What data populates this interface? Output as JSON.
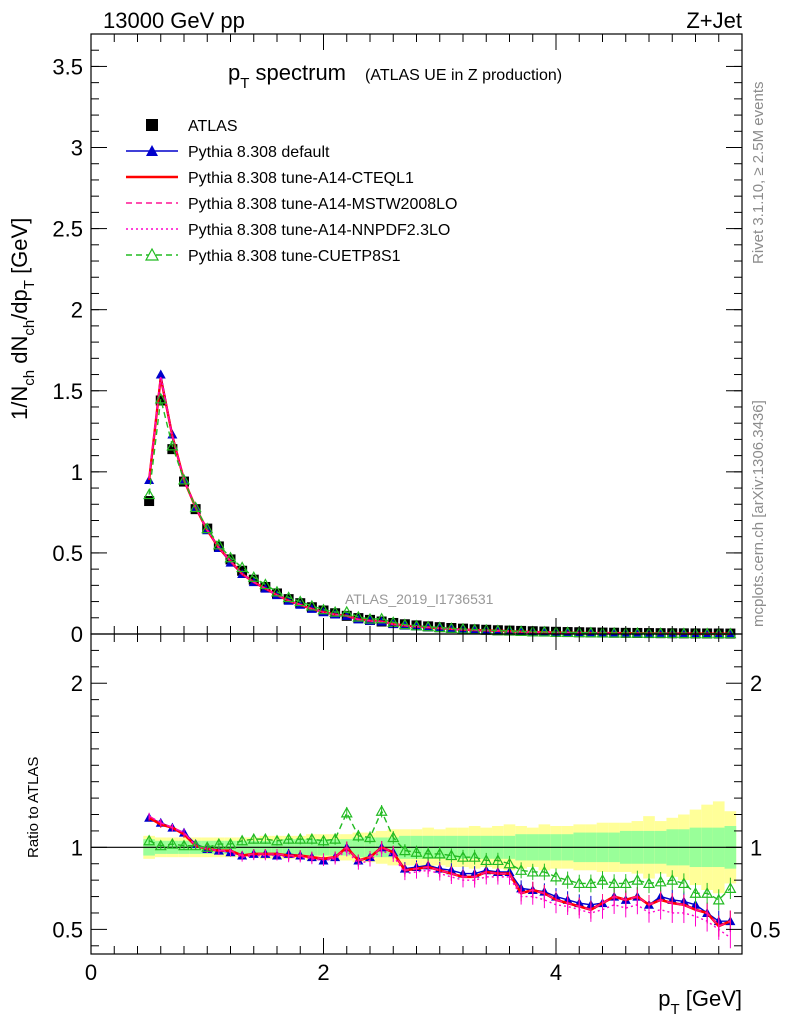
{
  "header": {
    "energy_label": "13000 GeV pp",
    "process_label": "Z+Jet"
  },
  "side": {
    "rivet_label": "Rivet 3.1.10, ≥ 2.5M events",
    "mcplots_label": "mcplots.cern.ch [arXiv:1306.3436]"
  },
  "watermark": "ATLAS_2019_I1736531",
  "chart_data": [
    {
      "type": "line",
      "title_main": "p",
      "title_sub": "T",
      "title_rest": " spectrum",
      "title_note": "(ATLAS UE in Z production)",
      "ylabel": "1/N_ch dN_ch/dp_T [GeV]",
      "xlim": [
        0,
        5.6
      ],
      "ylim": [
        0,
        3.7
      ],
      "yticks": [
        "0",
        "0.5",
        "1",
        "1.5",
        "2",
        "2.5",
        "3",
        "3.5"
      ],
      "x": [
        0.5,
        0.6,
        0.7,
        0.8,
        0.9,
        1.0,
        1.1,
        1.2,
        1.3,
        1.4,
        1.5,
        1.6,
        1.7,
        1.8,
        1.9,
        2.0,
        2.1,
        2.2,
        2.3,
        2.4,
        2.5,
        2.6,
        2.7,
        2.8,
        2.9,
        3.0,
        3.1,
        3.2,
        3.3,
        3.4,
        3.5,
        3.6,
        3.7,
        3.8,
        3.9,
        4.0,
        4.1,
        4.2,
        4.3,
        4.4,
        4.5,
        4.6,
        4.7,
        4.8,
        4.9,
        5.0,
        5.1,
        5.2,
        5.3,
        5.4,
        5.5
      ],
      "series": [
        {
          "name": "ATLAS",
          "color": "#000000",
          "marker": "square",
          "values": [
            0.82,
            1.44,
            1.14,
            0.94,
            0.77,
            0.65,
            0.54,
            0.46,
            0.39,
            0.335,
            0.29,
            0.25,
            0.215,
            0.19,
            0.165,
            0.145,
            0.128,
            0.112,
            0.098,
            0.087,
            0.077,
            0.068,
            0.06,
            0.053,
            0.047,
            0.042,
            0.037,
            0.033,
            0.029,
            0.026,
            0.023,
            0.021,
            0.019,
            0.017,
            0.015,
            0.0135,
            0.012,
            0.011,
            0.0098,
            0.0088,
            0.0079,
            0.0071,
            0.0064,
            0.0057,
            0.0051,
            0.0046,
            0.0041,
            0.0037,
            0.0033,
            0.003,
            0.0027
          ]
        },
        {
          "name": "Pythia 8.308 default",
          "color": "#0000cc",
          "marker": "triangle",
          "dash": "",
          "values": [
            0.95,
            1.6,
            1.23,
            0.95,
            0.78,
            0.64,
            0.53,
            0.44,
            0.37,
            0.32,
            0.28,
            0.24,
            0.205,
            0.18,
            0.155,
            0.134,
            0.12,
            0.112,
            0.09,
            0.082,
            0.076,
            0.061,
            0.052,
            0.047,
            0.042,
            0.037,
            0.032,
            0.028,
            0.025,
            0.023,
            0.02,
            0.017,
            0.014,
            0.012,
            0.011,
            0.009,
            0.008,
            0.007,
            0.006,
            0.0058,
            0.0055,
            0.005,
            0.0045,
            0.004,
            0.0036,
            0.0031,
            0.0028,
            0.0024,
            0.002,
            0.0018,
            0.0015
          ]
        },
        {
          "name": "Pythia 8.308 tune-A14-CTEQL1",
          "color": "#ff0000",
          "marker": "",
          "dash": "",
          "values": [
            0.95,
            1.58,
            1.22,
            0.95,
            0.78,
            0.64,
            0.53,
            0.45,
            0.37,
            0.32,
            0.28,
            0.24,
            0.205,
            0.18,
            0.155,
            0.135,
            0.12,
            0.112,
            0.09,
            0.082,
            0.077,
            0.061,
            0.052,
            0.046,
            0.041,
            0.036,
            0.031,
            0.027,
            0.024,
            0.022,
            0.02,
            0.017,
            0.014,
            0.012,
            0.011,
            0.009,
            0.008,
            0.007,
            0.006,
            0.0058,
            0.0055,
            0.005,
            0.0045,
            0.004,
            0.0035,
            0.003,
            0.0027,
            0.0023,
            0.002,
            0.0017,
            0.0015
          ]
        },
        {
          "name": "Pythia 8.308 tune-A14-MSTW2008LO",
          "color": "#ff1493",
          "marker": "",
          "dash": "6,4",
          "values": [
            0.96,
            1.58,
            1.22,
            0.95,
            0.78,
            0.64,
            0.53,
            0.45,
            0.37,
            0.32,
            0.28,
            0.24,
            0.205,
            0.18,
            0.155,
            0.135,
            0.12,
            0.112,
            0.09,
            0.082,
            0.077,
            0.061,
            0.052,
            0.046,
            0.041,
            0.036,
            0.031,
            0.027,
            0.024,
            0.022,
            0.02,
            0.017,
            0.014,
            0.012,
            0.011,
            0.009,
            0.008,
            0.007,
            0.006,
            0.0058,
            0.0055,
            0.005,
            0.0045,
            0.004,
            0.0035,
            0.003,
            0.0027,
            0.0023,
            0.002,
            0.0017,
            0.0015
          ]
        },
        {
          "name": "Pythia 8.308 tune-A14-NNPDF2.3LO",
          "color": "#ff00cc",
          "marker": "",
          "dash": "2,3",
          "values": [
            0.96,
            1.59,
            1.22,
            0.95,
            0.78,
            0.64,
            0.53,
            0.45,
            0.37,
            0.32,
            0.28,
            0.24,
            0.205,
            0.18,
            0.155,
            0.134,
            0.12,
            0.11,
            0.088,
            0.08,
            0.075,
            0.06,
            0.051,
            0.045,
            0.04,
            0.035,
            0.03,
            0.026,
            0.023,
            0.021,
            0.019,
            0.016,
            0.013,
            0.011,
            0.01,
            0.0085,
            0.0075,
            0.0066,
            0.0057,
            0.0054,
            0.0051,
            0.0047,
            0.0042,
            0.0038,
            0.0033,
            0.0028,
            0.0025,
            0.0021,
            0.0018,
            0.0015,
            0.0013
          ]
        },
        {
          "name": "Pythia 8.308 tune-CUETP8S1",
          "color": "#22bb22",
          "marker": "open-triangle",
          "dash": "6,4",
          "values": [
            0.86,
            1.45,
            1.16,
            0.95,
            0.78,
            0.65,
            0.55,
            0.47,
            0.41,
            0.35,
            0.305,
            0.26,
            0.225,
            0.2,
            0.173,
            0.15,
            0.135,
            0.136,
            0.105,
            0.092,
            0.094,
            0.072,
            0.058,
            0.051,
            0.045,
            0.04,
            0.035,
            0.031,
            0.027,
            0.024,
            0.021,
            0.019,
            0.016,
            0.014,
            0.013,
            0.011,
            0.0095,
            0.0085,
            0.0078,
            0.007,
            0.0062,
            0.0057,
            0.0052,
            0.0045,
            0.0041,
            0.0037,
            0.0032,
            0.0027,
            0.0022,
            0.0021,
            0.002
          ]
        }
      ]
    },
    {
      "type": "line",
      "ylabel": "Ratio to ATLAS",
      "xlabel_main": "p",
      "xlabel_sub": "T",
      "xlabel_rest": " [GeV]",
      "xlim": [
        0,
        5.6
      ],
      "ylim": [
        0.35,
        2.3
      ],
      "yticks": [
        "0.5",
        "1",
        "2"
      ],
      "yticks_right": [
        "0.5",
        "1",
        "2"
      ],
      "xticks": [
        "0",
        "2",
        "4"
      ],
      "x": [
        0.5,
        0.6,
        0.7,
        0.8,
        0.9,
        1.0,
        1.1,
        1.2,
        1.3,
        1.4,
        1.5,
        1.6,
        1.7,
        1.8,
        1.9,
        2.0,
        2.1,
        2.2,
        2.3,
        2.4,
        2.5,
        2.6,
        2.7,
        2.8,
        2.9,
        3.0,
        3.1,
        3.2,
        3.3,
        3.4,
        3.5,
        3.6,
        3.7,
        3.8,
        3.9,
        4.0,
        4.1,
        4.2,
        4.3,
        4.4,
        4.5,
        4.6,
        4.7,
        4.8,
        4.9,
        5.0,
        5.1,
        5.2,
        5.3,
        5.4,
        5.5
      ],
      "band_inner": [
        0.05,
        0.04,
        0.04,
        0.04,
        0.04,
        0.04,
        0.04,
        0.04,
        0.04,
        0.04,
        0.04,
        0.04,
        0.05,
        0.05,
        0.05,
        0.05,
        0.05,
        0.05,
        0.06,
        0.06,
        0.06,
        0.06,
        0.07,
        0.07,
        0.07,
        0.07,
        0.07,
        0.07,
        0.07,
        0.07,
        0.07,
        0.07,
        0.08,
        0.08,
        0.08,
        0.08,
        0.08,
        0.09,
        0.09,
        0.09,
        0.09,
        0.1,
        0.1,
        0.1,
        0.1,
        0.11,
        0.11,
        0.12,
        0.12,
        0.12,
        0.13
      ],
      "band_outer": [
        0.07,
        0.06,
        0.06,
        0.06,
        0.06,
        0.06,
        0.06,
        0.06,
        0.06,
        0.06,
        0.07,
        0.07,
        0.07,
        0.07,
        0.08,
        0.08,
        0.08,
        0.08,
        0.09,
        0.09,
        0.1,
        0.11,
        0.11,
        0.11,
        0.12,
        0.11,
        0.12,
        0.12,
        0.13,
        0.12,
        0.13,
        0.14,
        0.13,
        0.12,
        0.14,
        0.13,
        0.13,
        0.14,
        0.14,
        0.15,
        0.15,
        0.15,
        0.16,
        0.19,
        0.16,
        0.18,
        0.2,
        0.23,
        0.26,
        0.28,
        0.22
      ],
      "series": [
        {
          "name": "Pythia 8.308 default",
          "color": "#0000cc",
          "marker": "triangle",
          "dash": "",
          "values": [
            1.18,
            1.15,
            1.12,
            1.09,
            1.02,
            0.99,
            0.98,
            0.97,
            0.95,
            0.96,
            0.96,
            0.95,
            0.96,
            0.95,
            0.94,
            0.92,
            0.94,
            1.0,
            0.92,
            0.94,
            1.0,
            0.97,
            0.87,
            0.88,
            0.89,
            0.87,
            0.86,
            0.84,
            0.84,
            0.86,
            0.85,
            0.85,
            0.75,
            0.74,
            0.73,
            0.7,
            0.68,
            0.66,
            0.65,
            0.66,
            0.7,
            0.68,
            0.7,
            0.65,
            0.7,
            0.68,
            0.67,
            0.65,
            0.6,
            0.55,
            0.55
          ]
        },
        {
          "name": "Pythia 8.308 tune-A14-CTEQL1",
          "color": "#ff0000",
          "marker": "",
          "dash": "",
          "values": [
            1.18,
            1.14,
            1.12,
            1.08,
            1.01,
            0.99,
            0.98,
            0.98,
            0.95,
            0.96,
            0.96,
            0.96,
            0.95,
            0.95,
            0.94,
            0.93,
            0.94,
            1.0,
            0.92,
            0.94,
            1.0,
            0.97,
            0.86,
            0.87,
            0.88,
            0.86,
            0.84,
            0.82,
            0.82,
            0.85,
            0.84,
            0.84,
            0.72,
            0.74,
            0.72,
            0.68,
            0.66,
            0.64,
            0.62,
            0.66,
            0.7,
            0.68,
            0.7,
            0.65,
            0.68,
            0.66,
            0.65,
            0.62,
            0.6,
            0.52,
            0.55
          ]
        },
        {
          "name": "Pythia 8.308 tune-A14-MSTW2008LO",
          "color": "#ff1493",
          "marker": "",
          "dash": "6,4",
          "values": [
            1.19,
            1.15,
            1.12,
            1.09,
            1.01,
            0.99,
            0.98,
            0.98,
            0.95,
            0.96,
            0.96,
            0.96,
            0.95,
            0.95,
            0.94,
            0.93,
            0.94,
            1.0,
            0.92,
            0.94,
            1.0,
            0.97,
            0.86,
            0.87,
            0.88,
            0.86,
            0.84,
            0.82,
            0.82,
            0.85,
            0.84,
            0.84,
            0.72,
            0.74,
            0.72,
            0.68,
            0.66,
            0.64,
            0.62,
            0.66,
            0.7,
            0.68,
            0.7,
            0.65,
            0.68,
            0.66,
            0.65,
            0.62,
            0.6,
            0.52,
            0.55
          ]
        },
        {
          "name": "Pythia 8.308 tune-A14-NNPDF2.3LO",
          "color": "#ff00cc",
          "marker": "",
          "dash": "2,3",
          "values": [
            1.19,
            1.15,
            1.12,
            1.09,
            1.01,
            0.99,
            0.98,
            0.97,
            0.94,
            0.95,
            0.95,
            0.95,
            0.94,
            0.94,
            0.93,
            0.92,
            0.93,
            0.98,
            0.9,
            0.92,
            0.98,
            0.95,
            0.84,
            0.85,
            0.86,
            0.84,
            0.82,
            0.8,
            0.8,
            0.82,
            0.82,
            0.82,
            0.7,
            0.7,
            0.68,
            0.65,
            0.64,
            0.62,
            0.6,
            0.62,
            0.65,
            0.63,
            0.65,
            0.6,
            0.62,
            0.6,
            0.6,
            0.58,
            0.55,
            0.5,
            0.45
          ]
        },
        {
          "name": "Pythia 8.308 tune-CUETP8S1",
          "color": "#22bb22",
          "marker": "open-triangle",
          "dash": "6,4",
          "values": [
            1.04,
            1.01,
            1.02,
            1.01,
            1.01,
            1.0,
            1.02,
            1.02,
            1.04,
            1.05,
            1.05,
            1.04,
            1.05,
            1.05,
            1.05,
            1.04,
            1.05,
            1.21,
            1.07,
            1.06,
            1.22,
            1.06,
            0.98,
            0.97,
            0.96,
            0.96,
            0.95,
            0.94,
            0.94,
            0.92,
            0.92,
            0.9,
            0.86,
            0.85,
            0.85,
            0.82,
            0.8,
            0.78,
            0.78,
            0.8,
            0.78,
            0.78,
            0.8,
            0.78,
            0.79,
            0.8,
            0.78,
            0.72,
            0.72,
            0.68,
            0.75
          ]
        }
      ]
    }
  ]
}
